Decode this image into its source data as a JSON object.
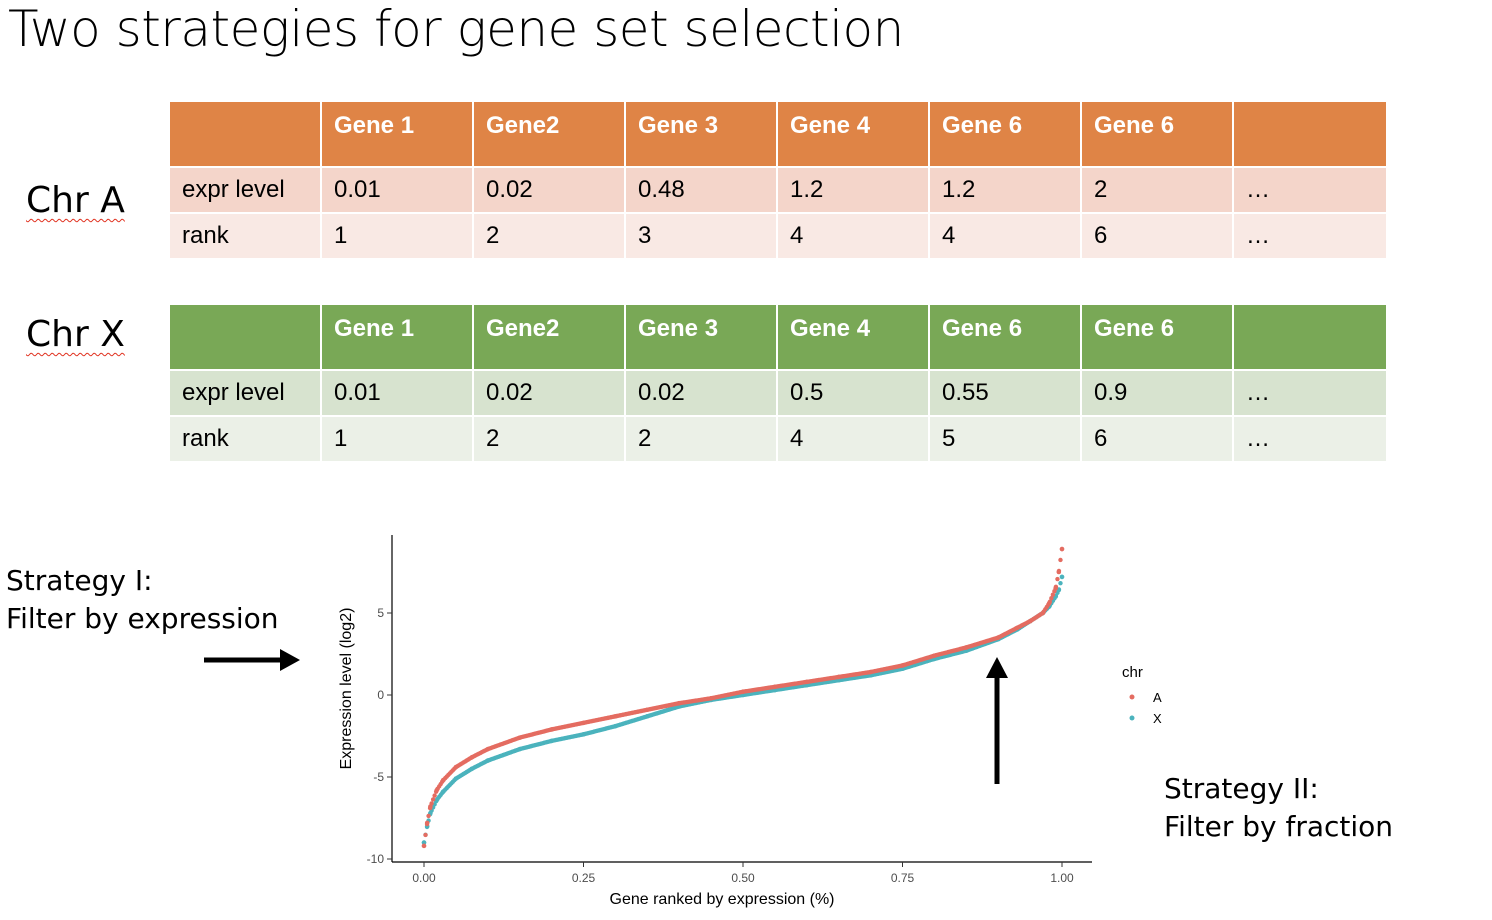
{
  "title": "Two strategies for gene set selection",
  "chr_a": {
    "label": "Chr A",
    "headers": [
      "",
      "Gene 1",
      "Gene2",
      "Gene 3",
      "Gene 4",
      "Gene 6",
      "Gene 6",
      ""
    ],
    "rows": [
      [
        "expr level",
        "0.01",
        "0.02",
        "0.48",
        "1.2",
        "1.2",
        "2",
        "…"
      ],
      [
        "rank",
        "1",
        "2",
        "3",
        "4",
        "4",
        "6",
        "…"
      ]
    ],
    "colors": {
      "header": "#df8446",
      "row1": "#f4d5ca",
      "row2": "#f9e9e4"
    }
  },
  "chr_x": {
    "label": "Chr X",
    "headers": [
      "",
      "Gene 1",
      "Gene2",
      "Gene 3",
      "Gene 4",
      "Gene 6",
      "Gene 6",
      ""
    ],
    "rows": [
      [
        "expr level",
        "0.01",
        "0.02",
        "0.02",
        "0.5",
        "0.55",
        "0.9",
        "…"
      ],
      [
        "rank",
        "1",
        "2",
        "2",
        "4",
        "5",
        "6",
        "…"
      ]
    ],
    "colors": {
      "header": "#79a856",
      "row1": "#d7e3cf",
      "row2": "#ebf0e7"
    }
  },
  "strategy_1": {
    "line1": "Strategy I:",
    "line2": "Filter by expression"
  },
  "strategy_2": {
    "line1": "Strategy II:",
    "line2": "Filter by fraction"
  },
  "chart_data": {
    "type": "scatter",
    "xlabel": "Gene ranked by expression (%)",
    "ylabel": "Expression level (log2)",
    "xlim": [
      0,
      1
    ],
    "ylim": [
      -10,
      9.5
    ],
    "xticks": [
      0,
      0.25,
      0.5,
      0.75,
      1
    ],
    "xtick_labels": [
      "0.00",
      "0.25",
      "0.50",
      "0.75",
      "1.00"
    ],
    "yticks": [
      -10,
      -5,
      0,
      5
    ],
    "ytick_labels": [
      "-10",
      "-5",
      "0",
      "5"
    ],
    "grid": false,
    "legend": {
      "title": "chr",
      "position": "right"
    },
    "series": [
      {
        "name": "A",
        "color": "#e46c61",
        "x": [
          0.0,
          0.005,
          0.01,
          0.02,
          0.03,
          0.05,
          0.075,
          0.1,
          0.15,
          0.2,
          0.25,
          0.3,
          0.35,
          0.4,
          0.45,
          0.5,
          0.55,
          0.6,
          0.65,
          0.7,
          0.75,
          0.8,
          0.85,
          0.9,
          0.93,
          0.95,
          0.97,
          0.98,
          0.99,
          0.995,
          1.0
        ],
        "y": [
          -9.2,
          -7.8,
          -6.8,
          -5.8,
          -5.2,
          -4.4,
          -3.8,
          -3.3,
          -2.6,
          -2.1,
          -1.7,
          -1.3,
          -0.9,
          -0.5,
          -0.2,
          0.2,
          0.5,
          0.8,
          1.1,
          1.4,
          1.8,
          2.4,
          2.9,
          3.5,
          4.1,
          4.5,
          5.0,
          5.6,
          6.5,
          7.5,
          8.9
        ]
      },
      {
        "name": "X",
        "color": "#4bb3bd",
        "x": [
          0.0,
          0.005,
          0.01,
          0.02,
          0.03,
          0.05,
          0.075,
          0.1,
          0.15,
          0.2,
          0.25,
          0.3,
          0.35,
          0.4,
          0.45,
          0.5,
          0.55,
          0.6,
          0.65,
          0.7,
          0.75,
          0.8,
          0.85,
          0.9,
          0.93,
          0.95,
          0.97,
          0.98,
          0.99,
          0.995,
          1.0
        ],
        "y": [
          -9.0,
          -8.0,
          -7.2,
          -6.4,
          -5.9,
          -5.1,
          -4.5,
          -4.0,
          -3.3,
          -2.8,
          -2.4,
          -1.9,
          -1.3,
          -0.7,
          -0.3,
          0.0,
          0.3,
          0.6,
          0.9,
          1.2,
          1.6,
          2.2,
          2.7,
          3.4,
          4.0,
          4.5,
          5.0,
          5.4,
          6.0,
          6.4,
          7.2
        ]
      }
    ]
  }
}
